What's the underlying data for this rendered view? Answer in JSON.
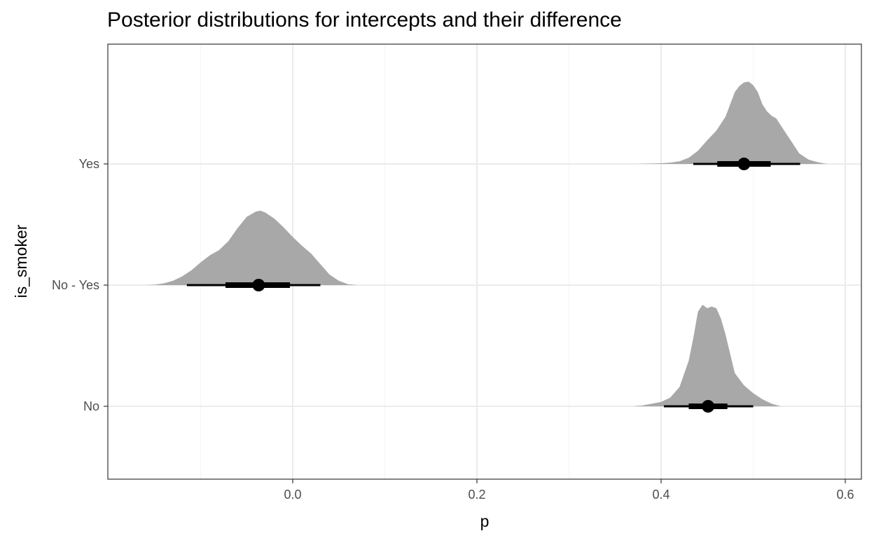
{
  "chart_data": {
    "type": "density-interval",
    "title": "Posterior distributions for intercepts and their difference",
    "xlabel": "p",
    "ylabel": "is_smoker",
    "xlim": [
      -0.2,
      0.61
    ],
    "x_ticks": [
      0.0,
      0.2,
      0.4,
      0.6
    ],
    "x_tick_labels": [
      "0.0",
      "0.2",
      "0.4",
      "0.6"
    ],
    "categories": [
      "No",
      "No - Yes",
      "Yes"
    ],
    "grid": true,
    "density_color": "#a8a8a8",
    "interval_color": "#000000",
    "series": [
      {
        "category": "Yes",
        "point": 0.49,
        "interval_66": [
          0.461,
          0.519
        ],
        "interval_95": [
          0.435,
          0.551
        ],
        "density": [
          [
            0.372,
            0.0
          ],
          [
            0.38,
            0.002
          ],
          [
            0.39,
            0.004
          ],
          [
            0.4,
            0.008
          ],
          [
            0.41,
            0.015
          ],
          [
            0.42,
            0.03
          ],
          [
            0.43,
            0.07
          ],
          [
            0.44,
            0.15
          ],
          [
            0.45,
            0.27
          ],
          [
            0.46,
            0.38
          ],
          [
            0.47,
            0.54
          ],
          [
            0.475,
            0.68
          ],
          [
            0.48,
            0.82
          ],
          [
            0.485,
            0.89
          ],
          [
            0.49,
            0.93
          ],
          [
            0.495,
            0.94
          ],
          [
            0.5,
            0.9
          ],
          [
            0.505,
            0.82
          ],
          [
            0.51,
            0.68
          ],
          [
            0.515,
            0.6
          ],
          [
            0.52,
            0.55
          ],
          [
            0.525,
            0.52
          ],
          [
            0.53,
            0.44
          ],
          [
            0.54,
            0.28
          ],
          [
            0.55,
            0.12
          ],
          [
            0.56,
            0.05
          ],
          [
            0.57,
            0.02
          ],
          [
            0.58,
            0.0
          ]
        ]
      },
      {
        "category": "No - Yes",
        "point": -0.037,
        "interval_66": [
          -0.073,
          -0.003
        ],
        "interval_95": [
          -0.115,
          0.03
        ],
        "density": [
          [
            -0.16,
            0.0
          ],
          [
            -0.15,
            0.005
          ],
          [
            -0.14,
            0.02
          ],
          [
            -0.13,
            0.05
          ],
          [
            -0.12,
            0.1
          ],
          [
            -0.11,
            0.17
          ],
          [
            -0.1,
            0.26
          ],
          [
            -0.09,
            0.34
          ],
          [
            -0.08,
            0.4
          ],
          [
            -0.07,
            0.5
          ],
          [
            -0.06,
            0.65
          ],
          [
            -0.05,
            0.78
          ],
          [
            -0.04,
            0.84
          ],
          [
            -0.035,
            0.85
          ],
          [
            -0.03,
            0.83
          ],
          [
            -0.02,
            0.76
          ],
          [
            -0.01,
            0.66
          ],
          [
            0.0,
            0.55
          ],
          [
            0.01,
            0.45
          ],
          [
            0.02,
            0.36
          ],
          [
            0.03,
            0.24
          ],
          [
            0.04,
            0.12
          ],
          [
            0.05,
            0.05
          ],
          [
            0.06,
            0.01
          ],
          [
            0.07,
            0.0
          ]
        ]
      },
      {
        "category": "No",
        "point": 0.451,
        "interval_66": [
          0.43,
          0.472
        ],
        "interval_95": [
          0.403,
          0.5
        ],
        "density": [
          [
            0.37,
            0.0
          ],
          [
            0.38,
            0.01
          ],
          [
            0.39,
            0.03
          ],
          [
            0.4,
            0.05
          ],
          [
            0.41,
            0.1
          ],
          [
            0.42,
            0.22
          ],
          [
            0.43,
            0.52
          ],
          [
            0.435,
            0.78
          ],
          [
            0.44,
            1.08
          ],
          [
            0.445,
            1.16
          ],
          [
            0.45,
            1.12
          ],
          [
            0.455,
            1.14
          ],
          [
            0.46,
            1.12
          ],
          [
            0.465,
            1.0
          ],
          [
            0.47,
            0.82
          ],
          [
            0.475,
            0.6
          ],
          [
            0.48,
            0.38
          ],
          [
            0.49,
            0.24
          ],
          [
            0.5,
            0.15
          ],
          [
            0.51,
            0.08
          ],
          [
            0.52,
            0.03
          ],
          [
            0.53,
            0.0
          ]
        ]
      }
    ]
  }
}
